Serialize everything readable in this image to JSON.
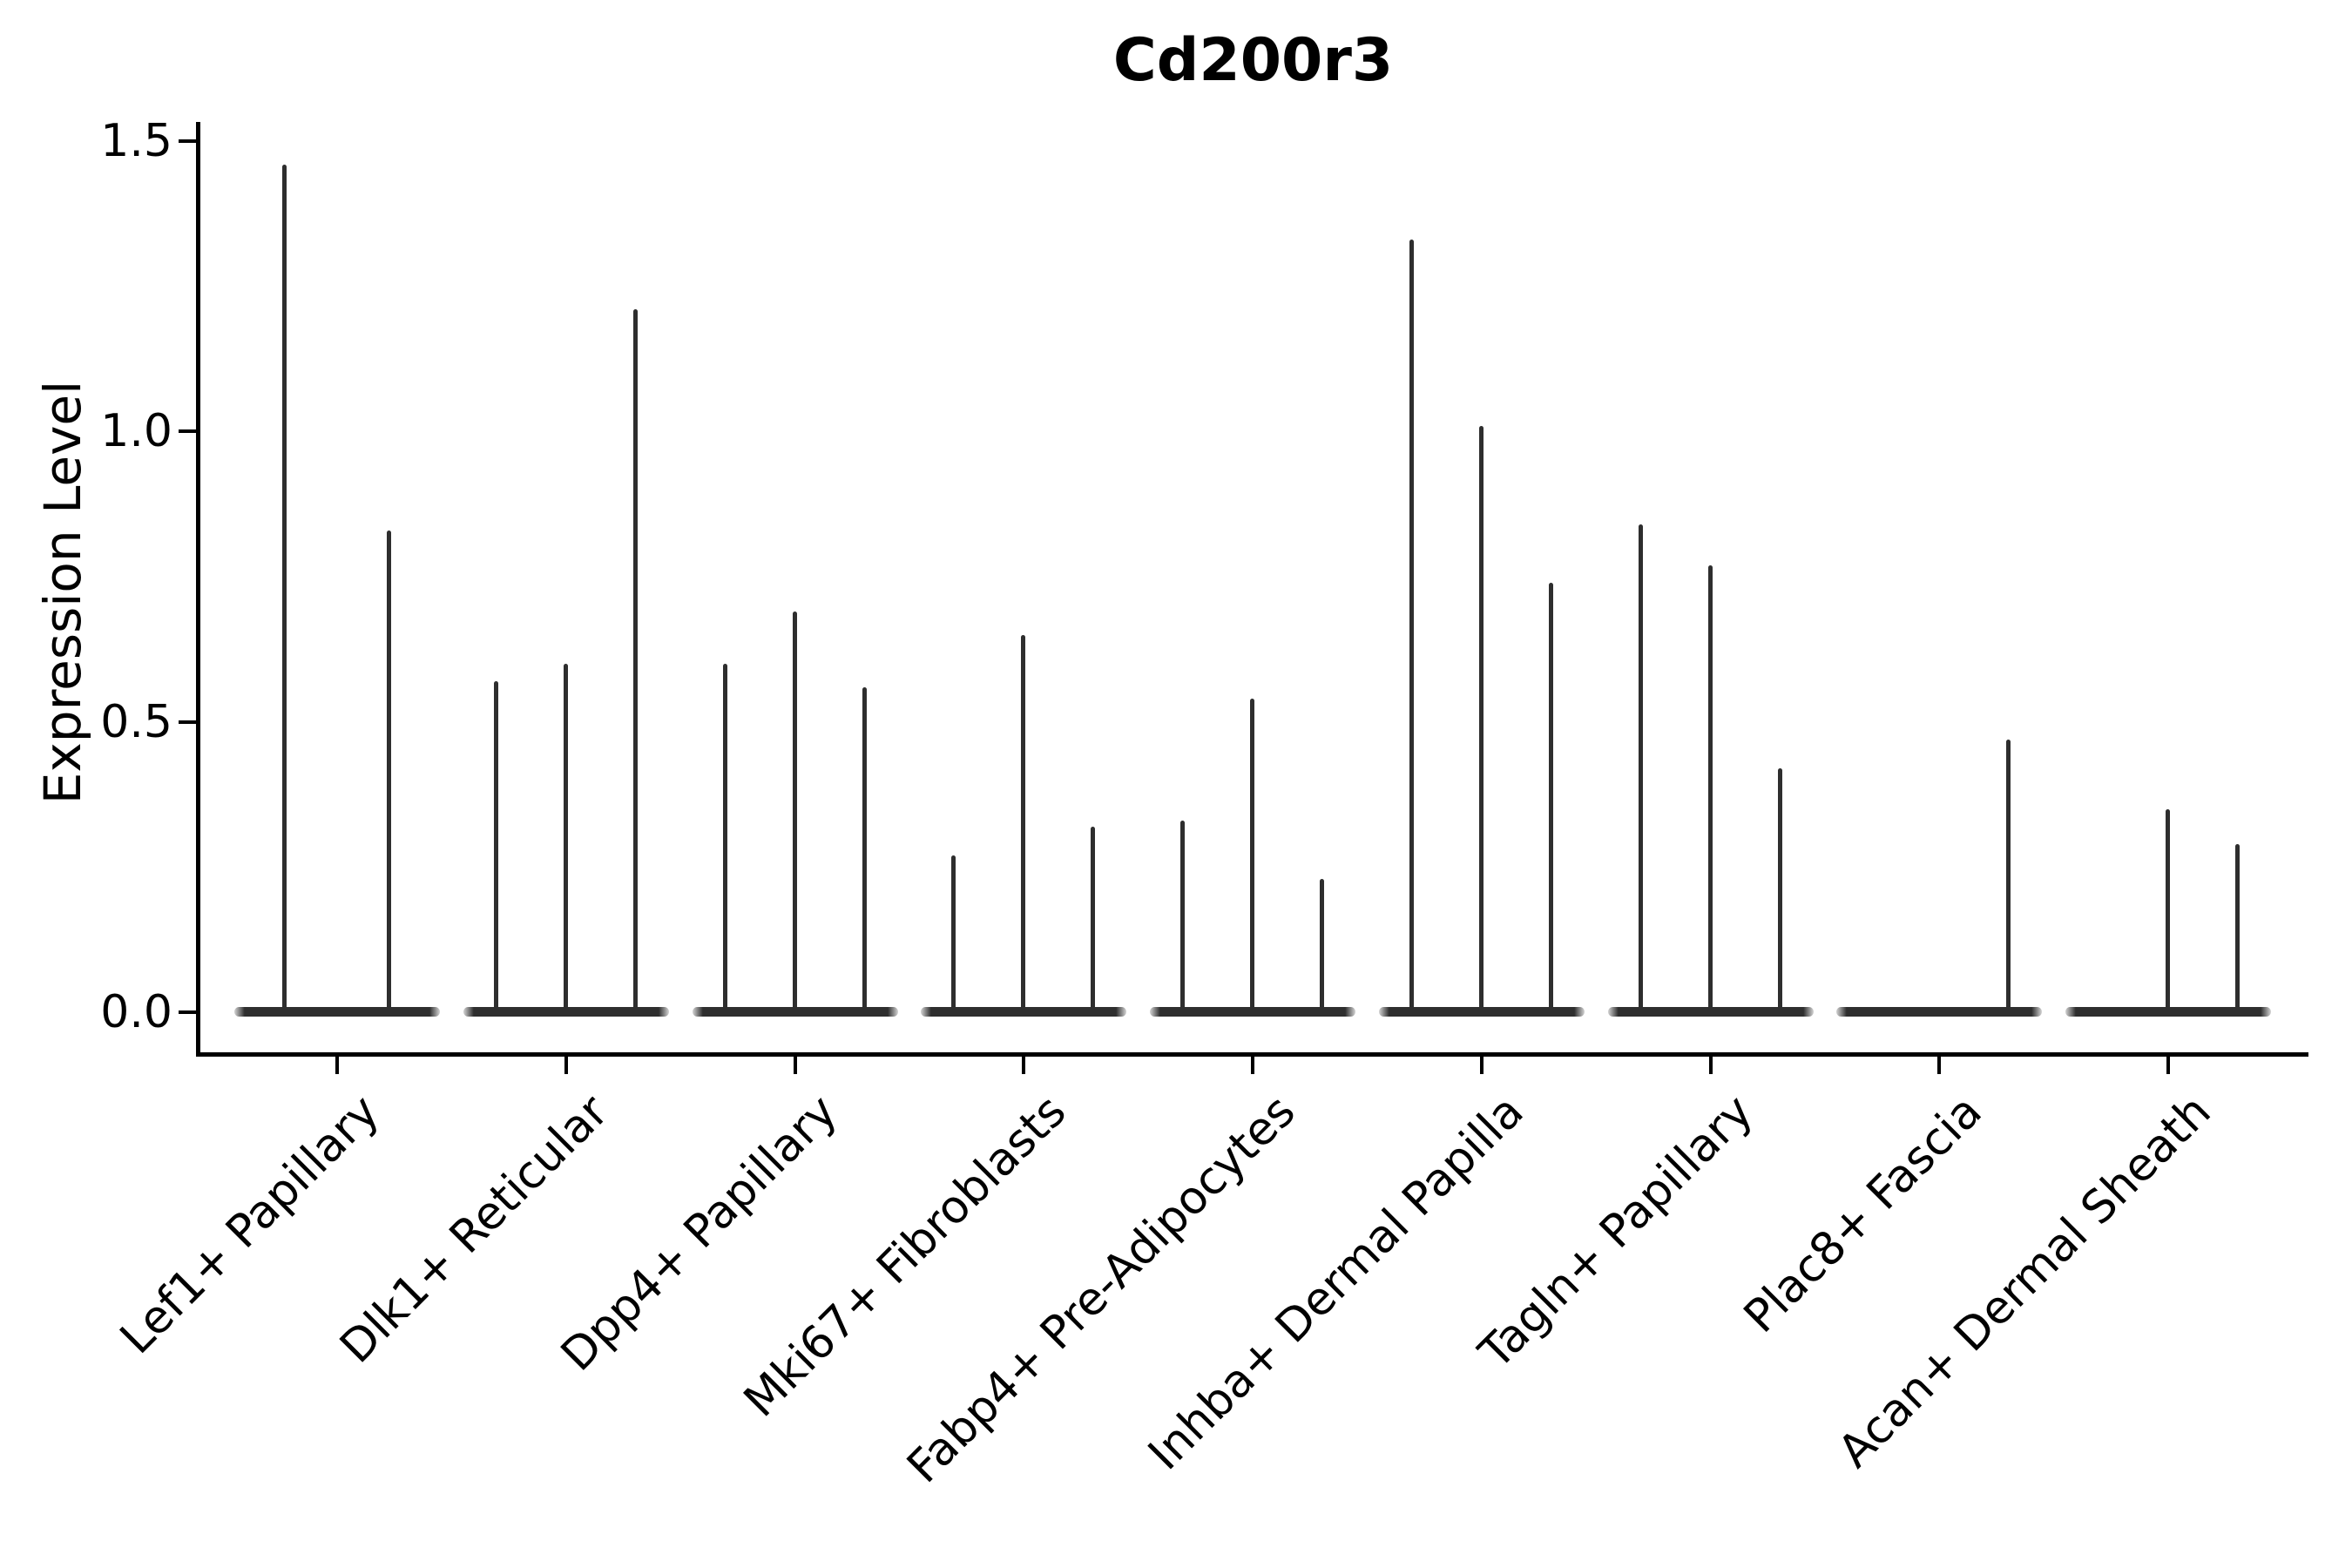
{
  "chart_data": {
    "type": "violin",
    "title": "Cd200r3",
    "xlabel": "",
    "ylabel": "Expression Level",
    "ytick_labels": [
      "0.0",
      "0.5",
      "1.0",
      "1.5"
    ],
    "ytick_values": [
      0.0,
      0.5,
      1.0,
      1.5
    ],
    "ylim": [
      -0.07,
      1.53
    ],
    "grid": false,
    "legend": "none",
    "violin_color": "#2e2e2e",
    "axis_color": "#000000",
    "groups": [
      {
        "category": "Lef1+ Papillary",
        "violin_peaks": [
          1.46,
          0.83
        ]
      },
      {
        "category": "Dlk1+ Reticular",
        "violin_peaks": [
          0.57,
          0.6,
          1.21
        ]
      },
      {
        "category": "Dpp4+ Papillary",
        "violin_peaks": [
          0.6,
          0.69,
          0.56
        ]
      },
      {
        "category": "Mki67+ Fibroblasts",
        "violin_peaks": [
          0.27,
          0.65,
          0.32
        ]
      },
      {
        "category": "Fabp4+ Pre-Adipocytes",
        "violin_peaks": [
          0.33,
          0.54,
          0.23
        ]
      },
      {
        "category": "Inhba+ Dermal Papilla",
        "violin_peaks": [
          1.33,
          1.01,
          0.74
        ]
      },
      {
        "category": "Tagln+ Papillary",
        "violin_peaks": [
          0.84,
          0.77,
          0.42
        ]
      },
      {
        "category": "Plac8+ Fascia",
        "violin_peaks": [
          0.0,
          0.0,
          0.47
        ]
      },
      {
        "category": "Acan+ Dermal Sheath",
        "violin_peaks": [
          0.0,
          0.35,
          0.29
        ]
      }
    ]
  }
}
